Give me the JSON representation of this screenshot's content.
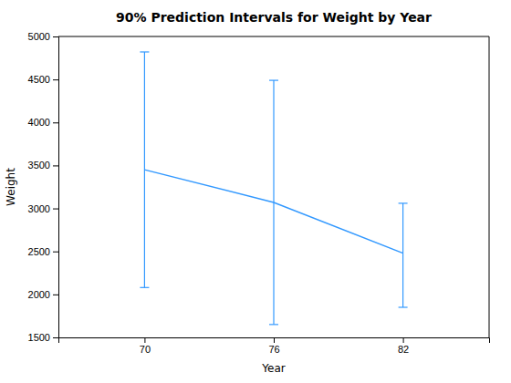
{
  "chart_data": {
    "type": "line",
    "title": "90% Prediction Intervals for Weight by Year",
    "xlabel": "Year",
    "ylabel": "Weight",
    "x": [
      70,
      76,
      82
    ],
    "values": [
      3450,
      3070,
      2480
    ],
    "upper": [
      4820,
      4490,
      3060
    ],
    "lower": [
      2080,
      1650,
      1850
    ],
    "color": "#3399FF",
    "xlim": [
      66,
      86
    ],
    "ylim": [
      1500,
      5000
    ],
    "xticks": [
      70,
      76,
      82
    ],
    "yticks": [
      1500,
      2000,
      2500,
      3000,
      3500,
      4000,
      4500,
      5000
    ],
    "grid": false
  }
}
